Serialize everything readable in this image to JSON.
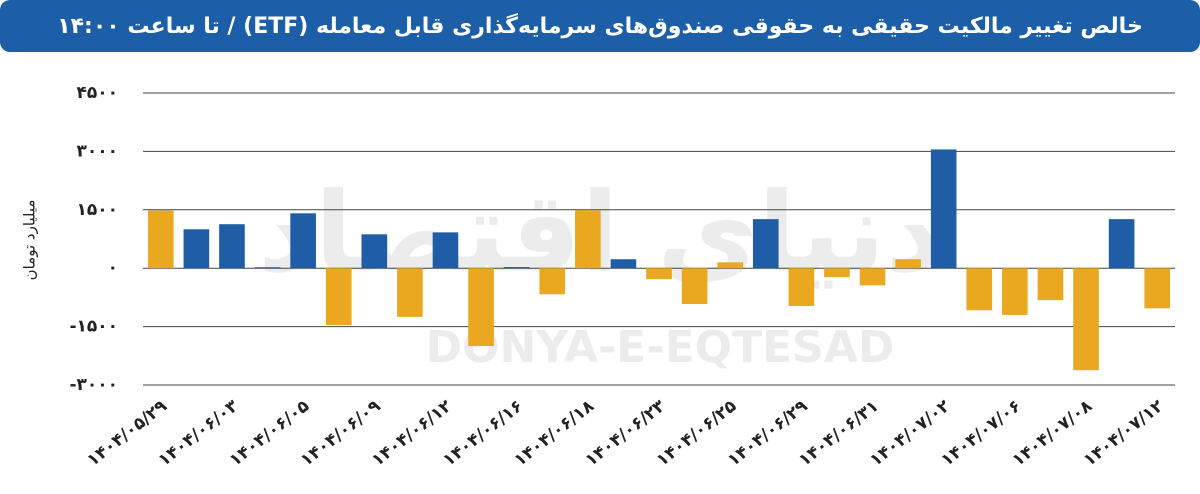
{
  "chart_data": {
    "type": "bar",
    "title": "خالص تغییر مالکیت حقیقی به حقوقی صندوق‌های سرمایه‌گذاری قابل معامله (ETF) / تا ساعت ۱۴:۰۰",
    "y_label": "میلیارد تومان",
    "watermark": "DONYA-E-EQTESAD",
    "watermark_fa": "دنیای اقتصاد",
    "categories": [
      "۱۴۰۴/۰۵/۲۹",
      null,
      "۱۴۰۴/۰۶/۰۳",
      null,
      "۱۴۰۴/۰۶/۰۵",
      null,
      "۱۴۰۴/۰۶/۰۹",
      null,
      "۱۴۰۴/۰۶/۱۲",
      null,
      "۱۴۰۴/۰۶/۱۶",
      null,
      "۱۴۰۴/۰۶/۱۸",
      null,
      "۱۴۰۴/۰۶/۲۳",
      null,
      "۱۴۰۴/۰۶/۲۵",
      null,
      "۱۴۰۴/۰۶/۲۹",
      null,
      "۱۴۰۴/۰۶/۳۱",
      null,
      "۱۴۰۴/۰۷/۰۲",
      null,
      "۱۴۰۴/۰۷/۰۶",
      null,
      "۱۴۰۴/۰۷/۰۸",
      null,
      "۱۴۰۴/۰۷/۱۲"
    ],
    "values": [
      1480,
      1000,
      1130,
      25,
      1410,
      -1460,
      870,
      -1250,
      920,
      -2000,
      30,
      -670,
      1490,
      230,
      -280,
      -920,
      150,
      1260,
      -970,
      -230,
      -440,
      230,
      3050,
      -1080,
      -1200,
      -820,
      -2620,
      1260,
      -1030
    ],
    "colors": [
      "#e9a81f",
      "#1f5ea6",
      "#1f5ea6",
      "#1f5ea6",
      "#1f5ea6",
      "#e9a81f",
      "#1f5ea6",
      "#e9a81f",
      "#1f5ea6",
      "#e9a81f",
      "#1f5ea6",
      "#e9a81f",
      "#e9a81f",
      "#1f5ea6",
      "#e9a81f",
      "#e9a81f",
      "#e9a81f",
      "#1f5ea6",
      "#e9a81f",
      "#e9a81f",
      "#e9a81f",
      "#e9a81f",
      "#1f5ea6",
      "#e9a81f",
      "#e9a81f",
      "#e9a81f",
      "#e9a81f",
      "#1f5ea6",
      "#e9a81f"
    ],
    "ylim": [
      -3000,
      4500
    ],
    "yticks": [
      {
        "value": -3000,
        "label": "-۳۰۰۰"
      },
      {
        "value": -1500,
        "label": "-۱۵۰۰"
      },
      {
        "value": 0,
        "label": "۰"
      },
      {
        "value": 1500,
        "label": "۱۵۰۰"
      },
      {
        "value": 3000,
        "label": "۳۰۰۰"
      },
      {
        "value": 4500,
        "label": "۴۵۰۰"
      }
    ],
    "grid": true
  }
}
